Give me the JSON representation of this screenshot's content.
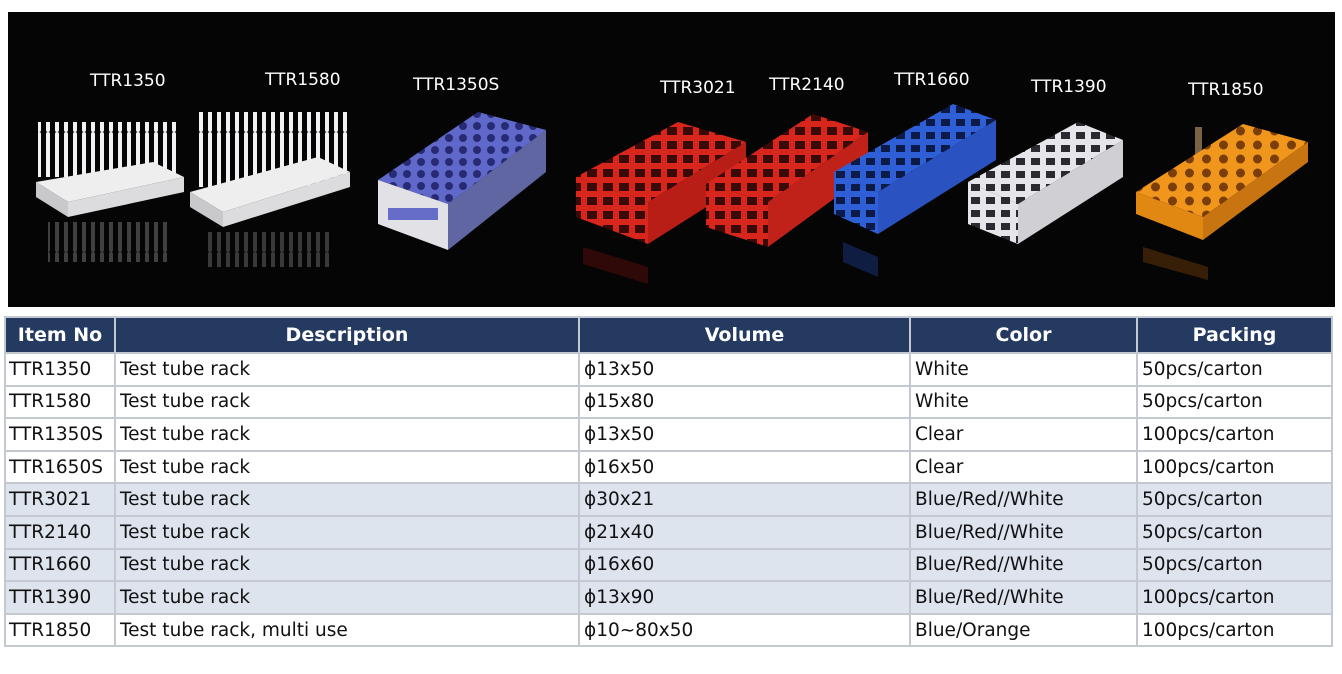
{
  "banner": {
    "labels": [
      "TTR1350",
      "TTR1580",
      "TTR1350S",
      "TTR3021",
      "TTR2140",
      "TTR1660",
      "TTR1390",
      "TTR1850"
    ],
    "rack_colors": {
      "white": "#e9eaec",
      "clear_blue": "#5a64d8",
      "red": "#d8261c",
      "blue": "#2f5fd6",
      "white_grid": "#e6e6ea",
      "orange": "#f0961c"
    }
  },
  "table": {
    "headers": [
      "Item No",
      "Description",
      "Volume",
      "Color",
      "Packing"
    ],
    "rows": [
      {
        "item": "TTR1350",
        "description": "Test tube rack",
        "volume": "ϕ13x50",
        "color": "White",
        "packing": "50pcs/carton"
      },
      {
        "item": "TTR1580",
        "description": "Test tube rack",
        "volume": "ϕ15x80",
        "color": "White",
        "packing": "50pcs/carton"
      },
      {
        "item": "TTR1350S",
        "description": "Test tube rack",
        "volume": "ϕ13x50",
        "color": "Clear",
        "packing": "100pcs/carton"
      },
      {
        "item": "TTR1650S",
        "description": "Test tube rack",
        "volume": "ϕ16x50",
        "color": "Clear",
        "packing": "100pcs/carton"
      },
      {
        "item": "TTR3021",
        "description": "Test tube rack",
        "volume": "ϕ30x21",
        "color": "Blue/Red//White",
        "packing": "50pcs/carton"
      },
      {
        "item": "TTR2140",
        "description": "Test tube rack",
        "volume": "ϕ21x40",
        "color": "Blue/Red//White",
        "packing": "50pcs/carton"
      },
      {
        "item": "TTR1660",
        "description": "Test tube rack",
        "volume": "ϕ16x60",
        "color": "Blue/Red//White",
        "packing": "50pcs/carton"
      },
      {
        "item": "TTR1390",
        "description": "Test tube rack",
        "volume": "ϕ13x90",
        "color": "Blue/Red//White",
        "packing": "100pcs/carton"
      },
      {
        "item": "TTR1850",
        "description": "Test tube rack, multi use",
        "volume": "ϕ10~80x50",
        "color": "Blue/Orange",
        "packing": "100pcs/carton"
      }
    ]
  }
}
